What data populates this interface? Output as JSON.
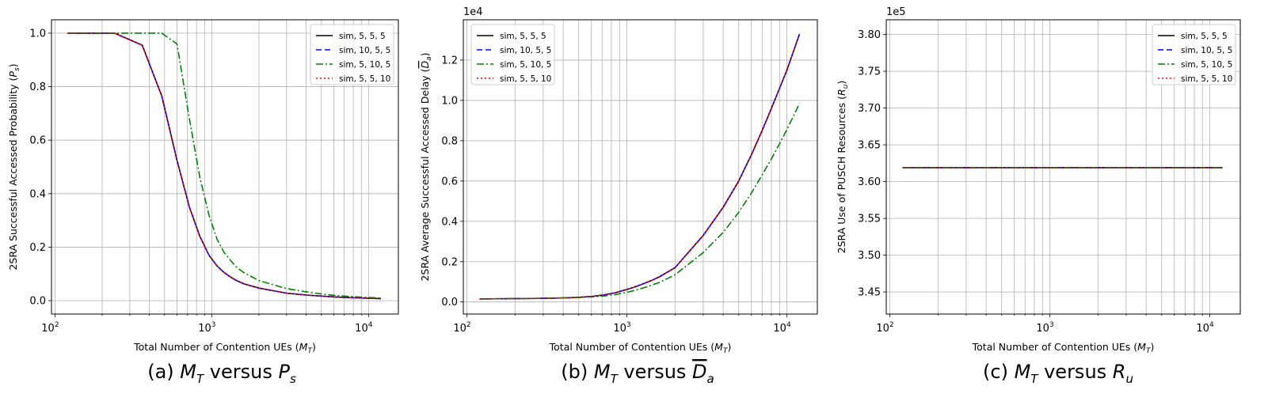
{
  "figure": {
    "legend_labels": [
      "sim, 5, 5, 5",
      "sim, 10, 5, 5",
      "sim, 5, 10, 5",
      "sim, 5, 5, 10"
    ],
    "x_values_mt": [
      120,
      240,
      360,
      480,
      600,
      720,
      840,
      960,
      1080,
      1200,
      1320,
      1440,
      1600,
      2000,
      3000,
      4000,
      5000,
      6000,
      7000,
      8000,
      9000,
      10000,
      12000
    ]
  },
  "chart_data": [
    {
      "type": "line",
      "panel": "a",
      "caption_prefix": "(a) ",
      "caption_mid": " versus ",
      "caption_left_math": "M",
      "caption_left_sub": "T",
      "caption_right_math": "P",
      "caption_right_sub": "s",
      "xlabel": "Total Number of Contention UEs",
      "xlabel_math": "M",
      "xlabel_sub": "T",
      "ylabel": "2SRA Successful Accessed Probability",
      "ylabel_math": "P",
      "ylabel_sub": "s",
      "x_scale": "log",
      "xlim": [
        95,
        15500
      ],
      "ylim": [
        -0.05,
        1.05
      ],
      "yticks": [
        "0.0",
        "0.2",
        "0.4",
        "0.6",
        "0.8",
        "1.0"
      ],
      "ytick_values": [
        0,
        0.2,
        0.4,
        0.6,
        0.8,
        1.0
      ],
      "xtick_labels": [
        "10",
        "10",
        "10"
      ],
      "xtick_exps": [
        "2",
        "3",
        "4"
      ],
      "xtick_values": [
        100,
        1000,
        10000
      ],
      "y_offset_text": "",
      "grid": true,
      "legend_position": "top-right",
      "series": [
        {
          "name": "sim, 5, 5, 5",
          "color": "#000000",
          "dash": "",
          "x": [
            120,
            240,
            360,
            480,
            600,
            720,
            840,
            960,
            1080,
            1200,
            1320,
            1440,
            1600,
            2000,
            3000,
            4000,
            5000,
            6000,
            7000,
            8000,
            9000,
            10000,
            12000
          ],
          "y": [
            1.0,
            1.0,
            0.955,
            0.765,
            0.525,
            0.35,
            0.24,
            0.17,
            0.13,
            0.105,
            0.088,
            0.075,
            0.063,
            0.047,
            0.028,
            0.021,
            0.017,
            0.014,
            0.012,
            0.011,
            0.01,
            0.009,
            0.008
          ]
        },
        {
          "name": "sim, 10, 5, 5",
          "color": "#0000ff",
          "dash": "7,4",
          "x": [
            120,
            240,
            360,
            480,
            600,
            720,
            840,
            960,
            1080,
            1200,
            1320,
            1440,
            1600,
            2000,
            3000,
            4000,
            5000,
            6000,
            7000,
            8000,
            9000,
            10000,
            12000
          ],
          "y": [
            1.0,
            1.0,
            0.955,
            0.765,
            0.525,
            0.35,
            0.24,
            0.17,
            0.13,
            0.105,
            0.088,
            0.075,
            0.063,
            0.047,
            0.028,
            0.021,
            0.017,
            0.014,
            0.012,
            0.011,
            0.01,
            0.009,
            0.008
          ]
        },
        {
          "name": "sim, 5, 10, 5",
          "color": "#008000",
          "dash": "9,3,2,3",
          "x": [
            120,
            240,
            360,
            480,
            600,
            720,
            840,
            960,
            1080,
            1200,
            1320,
            1440,
            1600,
            2000,
            3000,
            4000,
            5000,
            6000,
            7000,
            8000,
            9000,
            10000,
            12000
          ],
          "y": [
            1.0,
            1.0,
            1.0,
            1.0,
            0.96,
            0.68,
            0.46,
            0.32,
            0.23,
            0.18,
            0.15,
            0.125,
            0.105,
            0.075,
            0.045,
            0.033,
            0.025,
            0.02,
            0.017,
            0.015,
            0.013,
            0.012,
            0.01
          ]
        },
        {
          "name": "sim, 5, 5, 10",
          "color": "#ff0000",
          "dash": "2,3",
          "x": [
            120,
            240,
            360,
            480,
            600,
            720,
            840,
            960,
            1080,
            1200,
            1320,
            1440,
            1600,
            2000,
            3000,
            4000,
            5000,
            6000,
            7000,
            8000,
            9000,
            10000,
            12000
          ],
          "y": [
            1.0,
            1.0,
            0.955,
            0.765,
            0.525,
            0.35,
            0.24,
            0.17,
            0.13,
            0.105,
            0.088,
            0.075,
            0.063,
            0.047,
            0.028,
            0.021,
            0.017,
            0.014,
            0.012,
            0.011,
            0.01,
            0.009,
            0.008
          ]
        }
      ]
    },
    {
      "type": "line",
      "panel": "b",
      "caption_prefix": "(b) ",
      "caption_mid": " versus ",
      "caption_left_math": "M",
      "caption_left_sub": "T",
      "caption_right_math": "D",
      "caption_right_sub": "a",
      "caption_right_overline": true,
      "xlabel": "Total Number of Contention UEs",
      "xlabel_math": "M",
      "xlabel_sub": "T",
      "ylabel": "2SRA Average Successful Accessed Delay",
      "ylabel_math": "D",
      "ylabel_sub": "a",
      "ylabel_overline": true,
      "x_scale": "log",
      "xlim": [
        95,
        15500
      ],
      "ylim": [
        -0.06,
        1.4
      ],
      "yticks": [
        "0.0",
        "0.2",
        "0.4",
        "0.6",
        "0.8",
        "1.0",
        "1.2"
      ],
      "ytick_values": [
        0,
        0.2,
        0.4,
        0.6,
        0.8,
        1.0,
        1.2
      ],
      "xtick_labels": [
        "10",
        "10",
        "10"
      ],
      "xtick_exps": [
        "2",
        "3",
        "4"
      ],
      "xtick_values": [
        100,
        1000,
        10000
      ],
      "y_offset_text": "1e4",
      "grid": true,
      "legend_position": "top-left",
      "series": [
        {
          "name": "sim, 5, 5, 5",
          "color": "#000000",
          "dash": "",
          "x": [
            120,
            240,
            360,
            480,
            600,
            720,
            840,
            960,
            1080,
            1200,
            1320,
            1440,
            1600,
            2000,
            3000,
            4000,
            5000,
            6000,
            7000,
            8000,
            9000,
            10000,
            12000
          ],
          "y": [
            0.015,
            0.017,
            0.019,
            0.022,
            0.027,
            0.035,
            0.045,
            0.058,
            0.07,
            0.083,
            0.096,
            0.108,
            0.125,
            0.17,
            0.33,
            0.47,
            0.6,
            0.73,
            0.85,
            0.96,
            1.06,
            1.15,
            1.33
          ]
        },
        {
          "name": "sim, 10, 5, 5",
          "color": "#0000ff",
          "dash": "7,4",
          "x": [
            120,
            240,
            360,
            480,
            600,
            720,
            840,
            960,
            1080,
            1200,
            1320,
            1440,
            1600,
            2000,
            3000,
            4000,
            5000,
            6000,
            7000,
            8000,
            9000,
            10000,
            12000
          ],
          "y": [
            0.015,
            0.017,
            0.019,
            0.022,
            0.027,
            0.035,
            0.045,
            0.058,
            0.07,
            0.083,
            0.096,
            0.108,
            0.125,
            0.17,
            0.33,
            0.47,
            0.6,
            0.73,
            0.85,
            0.96,
            1.06,
            1.15,
            1.33
          ]
        },
        {
          "name": "sim, 5, 10, 5",
          "color": "#008000",
          "dash": "9,3,2,3",
          "x": [
            120,
            240,
            360,
            480,
            600,
            720,
            840,
            960,
            1080,
            1200,
            1320,
            1440,
            1600,
            2000,
            3000,
            4000,
            5000,
            6000,
            7000,
            8000,
            9000,
            10000,
            12000
          ],
          "y": [
            0.015,
            0.017,
            0.019,
            0.021,
            0.025,
            0.03,
            0.036,
            0.045,
            0.054,
            0.064,
            0.074,
            0.084,
            0.097,
            0.135,
            0.245,
            0.345,
            0.445,
            0.54,
            0.63,
            0.71,
            0.785,
            0.855,
            0.985
          ]
        },
        {
          "name": "sim, 5, 5, 10",
          "color": "#ff0000",
          "dash": "2,3",
          "x": [
            120,
            240,
            360,
            480,
            600,
            720,
            840,
            960,
            1080,
            1200,
            1320,
            1440,
            1600,
            2000,
            3000,
            4000,
            5000,
            6000,
            7000,
            8000,
            9000,
            10000,
            12000
          ],
          "y": [
            0.015,
            0.017,
            0.019,
            0.022,
            0.027,
            0.035,
            0.045,
            0.058,
            0.07,
            0.083,
            0.096,
            0.108,
            0.125,
            0.17,
            0.33,
            0.47,
            0.6,
            0.73,
            0.85,
            0.96,
            1.06,
            1.15,
            1.33
          ]
        }
      ]
    },
    {
      "type": "line",
      "panel": "c",
      "caption_prefix": "(c) ",
      "caption_mid": " versus ",
      "caption_left_math": "M",
      "caption_left_sub": "T",
      "caption_right_math": "R",
      "caption_right_sub": "u",
      "xlabel": "Total Number of Contention UEs",
      "xlabel_math": "M",
      "xlabel_sub": "T",
      "ylabel": "2SRA Use of PUSCH Resources",
      "ylabel_math": "R",
      "ylabel_sub": "u",
      "x_scale": "log",
      "xlim": [
        95,
        15500
      ],
      "ylim": [
        3.42,
        3.82
      ],
      "yticks": [
        "3.45",
        "3.50",
        "3.55",
        "3.60",
        "3.65",
        "3.70",
        "3.75",
        "3.80"
      ],
      "ytick_values": [
        3.45,
        3.5,
        3.55,
        3.6,
        3.65,
        3.7,
        3.75,
        3.8
      ],
      "xtick_labels": [
        "10",
        "10",
        "10"
      ],
      "xtick_exps": [
        "2",
        "3",
        "4"
      ],
      "xtick_values": [
        100,
        1000,
        10000
      ],
      "y_offset_text": "1e5",
      "grid": true,
      "legend_position": "top-right",
      "series": [
        {
          "name": "sim, 5, 5, 5",
          "color": "#000000",
          "dash": "",
          "x": [
            120,
            12000
          ],
          "y": [
            3.619,
            3.619
          ]
        },
        {
          "name": "sim, 10, 5, 5",
          "color": "#0000ff",
          "dash": "7,4",
          "x": [
            120,
            12000
          ],
          "y": [
            3.619,
            3.619
          ]
        },
        {
          "name": "sim, 5, 10, 5",
          "color": "#008000",
          "dash": "9,3,2,3",
          "x": [
            120,
            12000
          ],
          "y": [
            3.619,
            3.619
          ]
        },
        {
          "name": "sim, 5, 5, 10",
          "color": "#ff0000",
          "dash": "2,3",
          "x": [
            120,
            12000
          ],
          "y": [
            3.619,
            3.619
          ]
        }
      ]
    }
  ]
}
